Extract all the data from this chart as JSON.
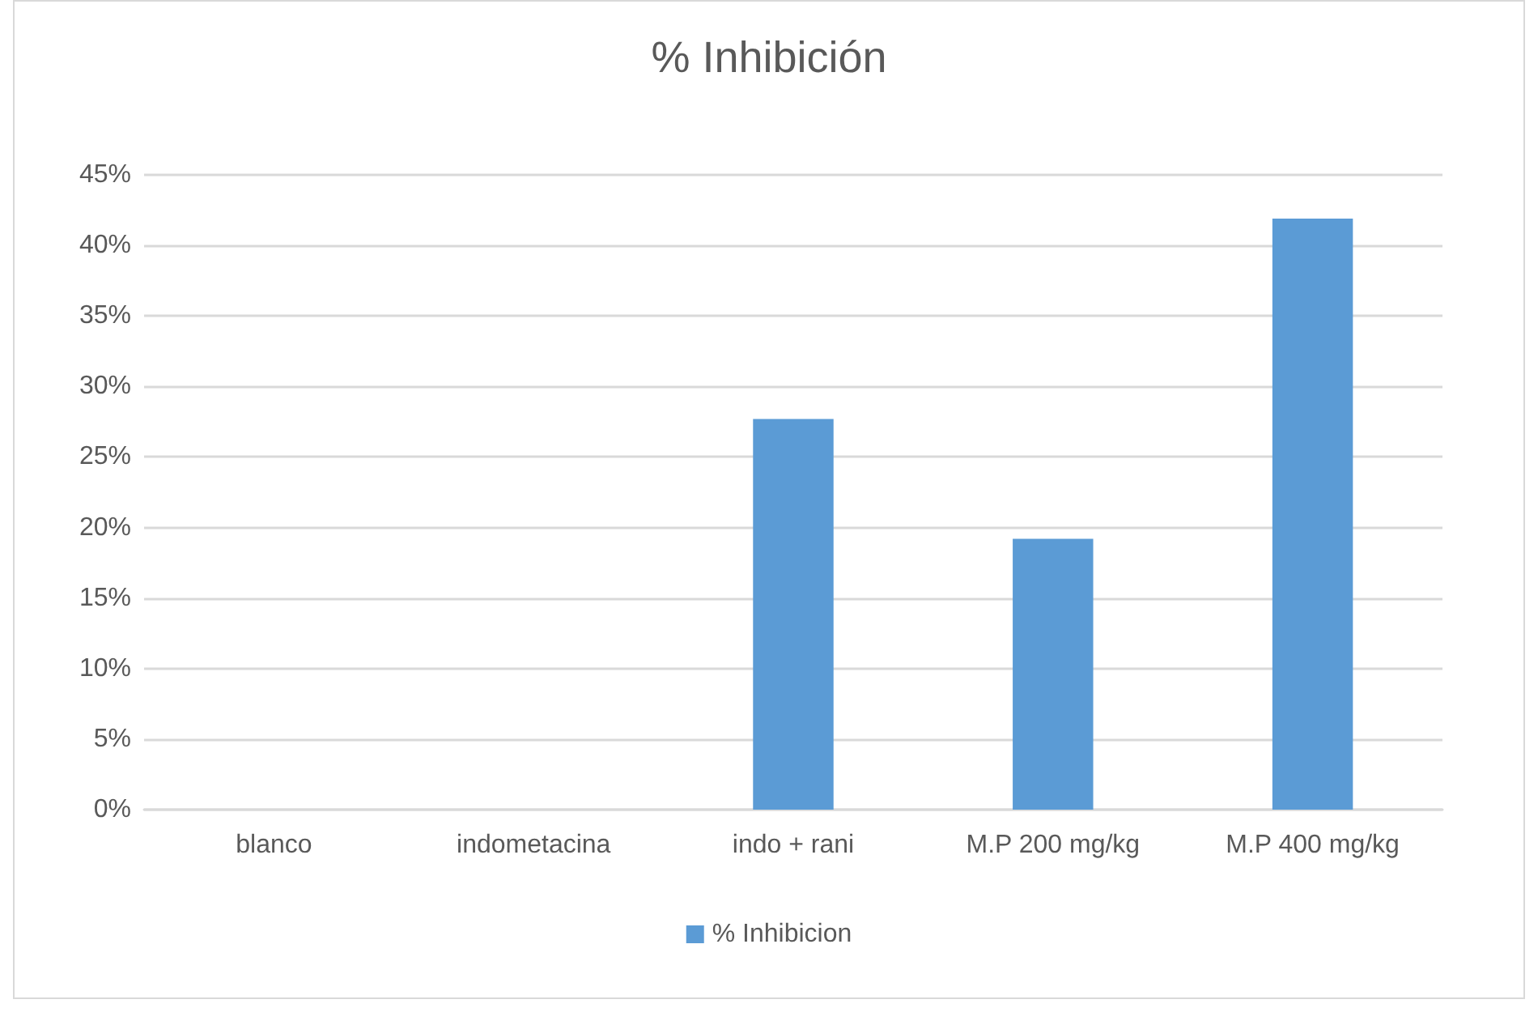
{
  "chart_data": {
    "type": "bar",
    "title": "% Inhibición",
    "categories": [
      "blanco",
      "indometacina",
      "indo + rani",
      "M.P 200 mg/kg",
      "M.P 400 mg/kg"
    ],
    "series": [
      {
        "name": "% Inhibicion",
        "color": "#5b9bd5",
        "values": [
          0,
          0,
          27.7,
          19.2,
          41.9
        ]
      }
    ],
    "ylim": [
      0,
      45
    ],
    "yticks": [
      {
        "value": 0,
        "label": "0%"
      },
      {
        "value": 5,
        "label": "5%"
      },
      {
        "value": 10,
        "label": "10%"
      },
      {
        "value": 15,
        "label": "15%"
      },
      {
        "value": 20,
        "label": "20%"
      },
      {
        "value": 25,
        "label": "25%"
      },
      {
        "value": 30,
        "label": "30%"
      },
      {
        "value": 35,
        "label": "35%"
      },
      {
        "value": 40,
        "label": "40%"
      },
      {
        "value": 45,
        "label": "45%"
      }
    ],
    "grid": "y",
    "legend": "bottom"
  }
}
